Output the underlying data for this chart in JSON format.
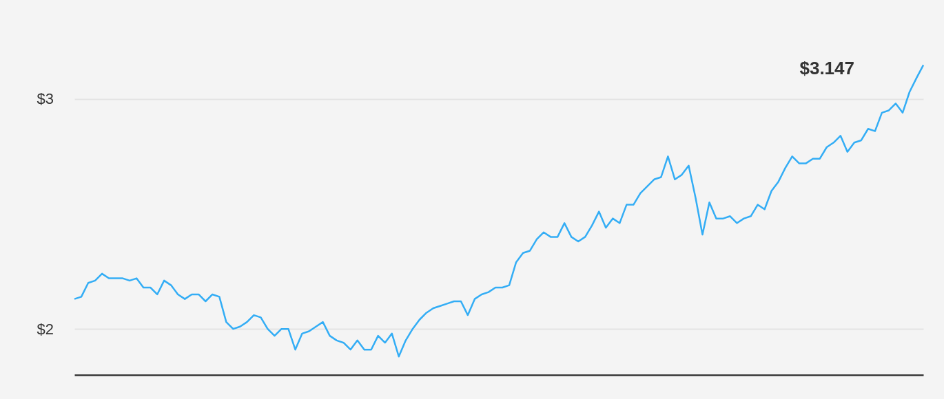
{
  "chart_data": {
    "type": "line",
    "categories": [
      null,
      null,
      null,
      null,
      null,
      null,
      null,
      null,
      null,
      null,
      null,
      null,
      null,
      null,
      null,
      null,
      null,
      null,
      null,
      null,
      null,
      null,
      null,
      null,
      null,
      null,
      null,
      null,
      null,
      null,
      null,
      null,
      null,
      null,
      null,
      null,
      null,
      null,
      null,
      null,
      null,
      null,
      null,
      null,
      null,
      null,
      null,
      null,
      null,
      null,
      null,
      null,
      null,
      null,
      null,
      null,
      null,
      null,
      null,
      null,
      null,
      null,
      null,
      null,
      null,
      null,
      null,
      null,
      null,
      null,
      null,
      null,
      null,
      null,
      null,
      null,
      null,
      null,
      null,
      null,
      null,
      null,
      null,
      null,
      null,
      null,
      null,
      null,
      null,
      null,
      null,
      null,
      null,
      null,
      null,
      null,
      null,
      null,
      null,
      null,
      null,
      null,
      null,
      null,
      null,
      null,
      null,
      null,
      null,
      null,
      null,
      null,
      null,
      null,
      null,
      null,
      null,
      null,
      null,
      null,
      null,
      null,
      null,
      null
    ],
    "series": [
      {
        "color": "#33adf5",
        "values": [
          2.13,
          2.14,
          2.2,
          2.21,
          2.24,
          2.22,
          2.22,
          2.22,
          2.21,
          2.22,
          2.18,
          2.18,
          2.15,
          2.21,
          2.19,
          2.15,
          2.13,
          2.15,
          2.15,
          2.12,
          2.15,
          2.14,
          2.03,
          2.0,
          2.01,
          2.03,
          2.06,
          2.05,
          2.0,
          1.97,
          2.0,
          2.0,
          1.91,
          1.98,
          1.99,
          2.01,
          2.03,
          1.97,
          1.95,
          1.94,
          1.91,
          1.95,
          1.91,
          1.91,
          1.97,
          1.94,
          1.98,
          1.88,
          1.95,
          2.0,
          2.04,
          2.07,
          2.09,
          2.1,
          2.11,
          2.12,
          2.12,
          2.06,
          2.13,
          2.15,
          2.16,
          2.18,
          2.18,
          2.19,
          2.29,
          2.33,
          2.34,
          2.39,
          2.42,
          2.4,
          2.4,
          2.46,
          2.4,
          2.38,
          2.4,
          2.45,
          2.51,
          2.44,
          2.48,
          2.46,
          2.54,
          2.54,
          2.59,
          2.62,
          2.65,
          2.66,
          2.75,
          2.65,
          2.67,
          2.71,
          2.57,
          2.41,
          2.55,
          2.48,
          2.48,
          2.49,
          2.46,
          2.48,
          2.49,
          2.54,
          2.52,
          2.6,
          2.64,
          2.7,
          2.75,
          2.72,
          2.72,
          2.74,
          2.74,
          2.79,
          2.81,
          2.84,
          2.77,
          2.81,
          2.82,
          2.87,
          2.86,
          2.94,
          2.95,
          2.98,
          2.94,
          3.03,
          3.09,
          3.147
        ]
      }
    ],
    "ylim": [
      1.8,
      3.43
    ],
    "yticks": [
      {
        "value": 2,
        "label": "$2"
      },
      {
        "value": 3,
        "label": "$3"
      }
    ],
    "grid": "y",
    "tick_labels": "y",
    "marker": "none",
    "line_style": "solid",
    "annotations": [
      "$3.147"
    ]
  }
}
